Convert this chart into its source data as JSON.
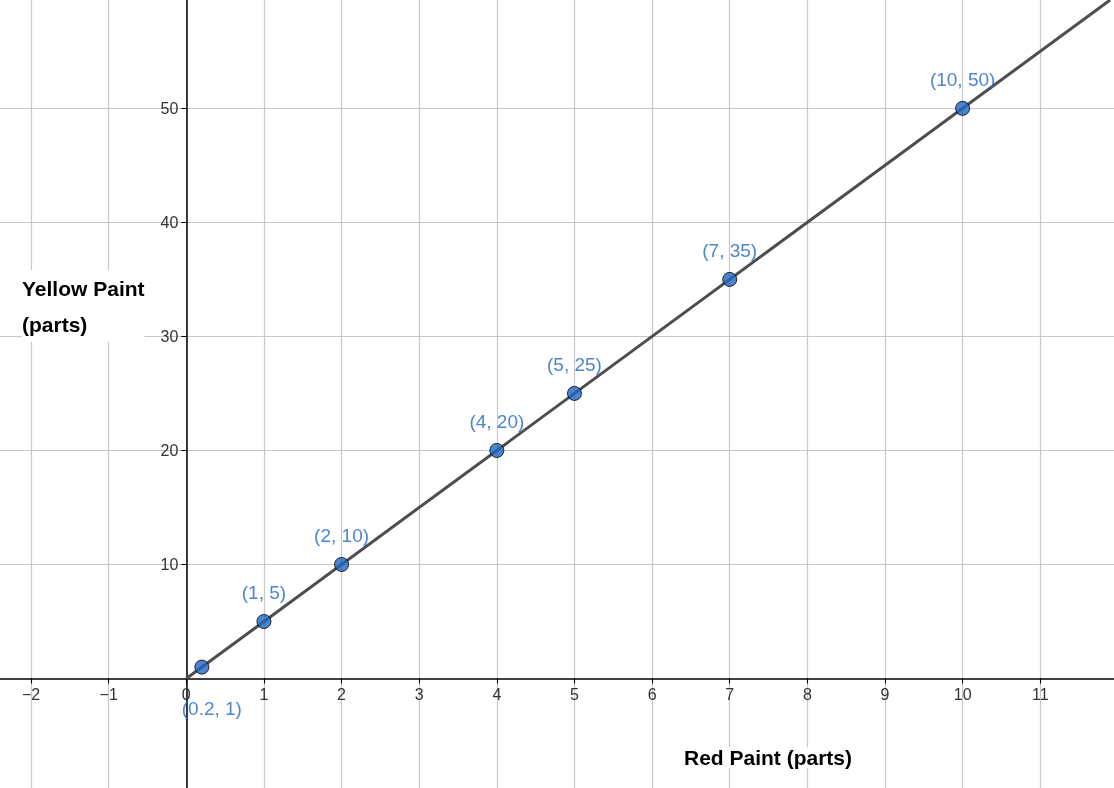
{
  "chart_data": {
    "type": "scatter",
    "xlabel": "Red Paint (parts)",
    "ylabel": "Yellow Paint\n(parts)",
    "xlim": [
      -2.4,
      11.95
    ],
    "ylim": [
      -9.6,
      59.5
    ],
    "xticks": [
      -2,
      -1,
      0,
      1,
      2,
      3,
      4,
      5,
      6,
      7,
      8,
      9,
      10,
      11
    ],
    "yticks": [
      10,
      20,
      30,
      40,
      50
    ],
    "grid": true,
    "marker": "circle",
    "series": [
      {
        "type": "line",
        "color": "#4d4d4d",
        "x": [
          0,
          11.9
        ],
        "values": [
          0,
          59.5
        ],
        "marker": "none"
      },
      {
        "color": "#1f66c1",
        "x": [
          0.2,
          1,
          2,
          4,
          5,
          7,
          10
        ],
        "values": [
          1,
          5,
          10,
          20,
          25,
          35,
          50
        ],
        "value_labels": [
          "(0.2, 1)",
          "(1, 5)",
          "(2, 10)",
          "(4, 20)",
          "(5, 25)",
          "(7, 35)",
          "(10, 50)"
        ]
      }
    ]
  }
}
